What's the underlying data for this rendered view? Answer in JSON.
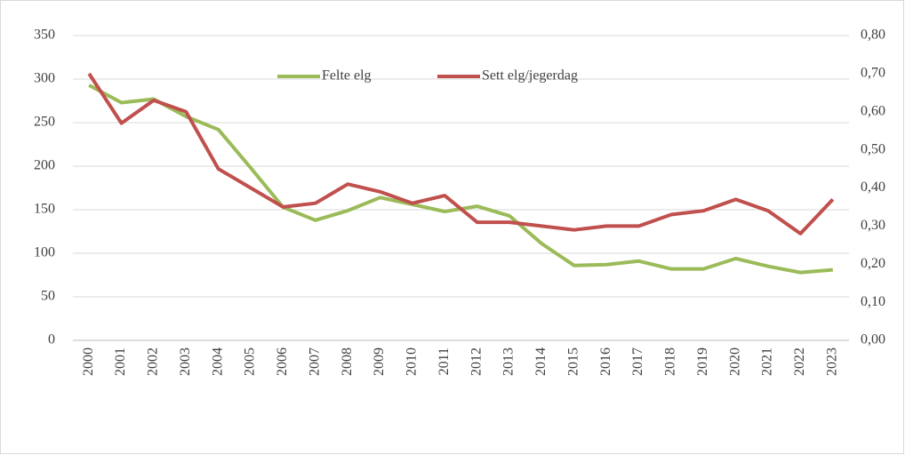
{
  "chart_data": {
    "type": "line",
    "categories": [
      "2000",
      "2001",
      "2002",
      "2003",
      "2004",
      "2005",
      "2006",
      "2007",
      "2008",
      "2009",
      "2010",
      "2011",
      "2012",
      "2013",
      "2014",
      "2015",
      "2016",
      "2017",
      "2018",
      "2019",
      "2020",
      "2021",
      "2022",
      "2023"
    ],
    "series": [
      {
        "name": "Felte elg",
        "color": "#9bbb59",
        "values": [
          293,
          273,
          277,
          257,
          242,
          198,
          153,
          138,
          149,
          164,
          156,
          148,
          154,
          143,
          111,
          86,
          87,
          91,
          82,
          82,
          94,
          85,
          78,
          81
        ]
      },
      {
        "name": "Sett elg/jegerdag",
        "color": "#c0504d",
        "axis": "y2",
        "values": [
          0.7,
          0.57,
          0.63,
          0.6,
          0.45,
          0.4,
          0.35,
          0.36,
          0.41,
          0.39,
          0.36,
          0.38,
          0.31,
          0.31,
          0.3,
          0.29,
          0.3,
          0.3,
          0.33,
          0.34,
          0.37,
          0.34,
          0.28,
          0.37
        ]
      }
    ],
    "ylim": [
      0,
      350
    ],
    "yticks": [
      0,
      50,
      100,
      150,
      200,
      250,
      300,
      350
    ],
    "y2lim": [
      0,
      0.8
    ],
    "y2ticks": [
      {
        "value": 0,
        "label": "0,00"
      },
      {
        "value": 0.1,
        "label": "0,10"
      },
      {
        "value": 0.2,
        "label": "0,20"
      },
      {
        "value": 0.3,
        "label": "0,30"
      },
      {
        "value": 0.4,
        "label": "0,40"
      },
      {
        "value": 0.5,
        "label": "0,50"
      },
      {
        "value": 0.6,
        "label": "0,60"
      },
      {
        "value": 0.7,
        "label": "0,70"
      },
      {
        "value": 0.8,
        "label": "0,80"
      }
    ],
    "grid": true,
    "legend": "top"
  }
}
